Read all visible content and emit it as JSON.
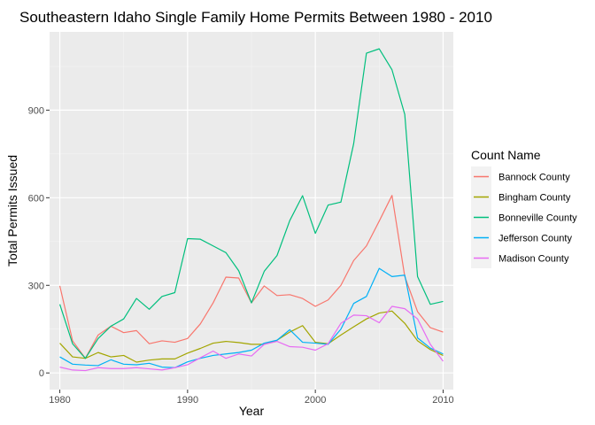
{
  "chart_data": {
    "type": "line",
    "title": "Southeastern Idaho Single Family Home Permits Between 1980 - 2010",
    "xlabel": "Year",
    "ylabel": "Total Permits Issued",
    "xlim": [
      1979.2,
      2010.8
    ],
    "ylim": [
      -57,
      1168
    ],
    "x_ticks": [
      1980,
      1990,
      2000,
      2010
    ],
    "y_ticks": [
      0,
      300,
      600,
      900
    ],
    "grid": true,
    "legend": {
      "title": "Count Name",
      "position": "right"
    },
    "x": [
      1980,
      1981,
      1982,
      1983,
      1984,
      1985,
      1986,
      1987,
      1988,
      1989,
      1990,
      1991,
      1992,
      1993,
      1994,
      1995,
      1996,
      1997,
      1998,
      1999,
      2000,
      2001,
      2002,
      2003,
      2004,
      2005,
      2006,
      2007,
      2008,
      2009,
      2010
    ],
    "series": [
      {
        "name": "Bannock County",
        "color": "#F8766D",
        "values": [
          298,
          110,
          50,
          130,
          160,
          138,
          145,
          100,
          110,
          105,
          118,
          168,
          240,
          328,
          325,
          240,
          298,
          265,
          268,
          255,
          228,
          250,
          300,
          385,
          435,
          520,
          608,
          330,
          210,
          155,
          140
        ]
      },
      {
        "name": "Bingham County",
        "color": "#A3A500",
        "values": [
          102,
          55,
          50,
          70,
          55,
          60,
          37,
          44,
          48,
          48,
          68,
          84,
          102,
          108,
          104,
          98,
          98,
          112,
          140,
          162,
          105,
          100,
          130,
          158,
          185,
          205,
          212,
          170,
          110,
          80,
          60
        ]
      },
      {
        "name": "Bonneville County",
        "color": "#00BF7D",
        "values": [
          235,
          100,
          50,
          118,
          160,
          185,
          255,
          218,
          262,
          275,
          460,
          458,
          435,
          412,
          350,
          240,
          348,
          402,
          522,
          607,
          478,
          575,
          585,
          785,
          1095,
          1110,
          1038,
          885,
          330,
          235,
          245
        ]
      },
      {
        "name": "Jefferson County",
        "color": "#00B0F6",
        "values": [
          55,
          30,
          27,
          25,
          45,
          30,
          28,
          33,
          20,
          18,
          38,
          50,
          60,
          65,
          70,
          78,
          102,
          112,
          148,
          105,
          102,
          98,
          150,
          238,
          262,
          358,
          330,
          335,
          120,
          85,
          65
        ]
      },
      {
        "name": "Madison County",
        "color": "#E76BF3",
        "values": [
          20,
          10,
          8,
          18,
          15,
          15,
          18,
          14,
          10,
          18,
          28,
          52,
          75,
          50,
          65,
          58,
          98,
          108,
          90,
          88,
          78,
          100,
          170,
          198,
          196,
          172,
          228,
          220,
          185,
          98,
          40
        ]
      }
    ]
  }
}
